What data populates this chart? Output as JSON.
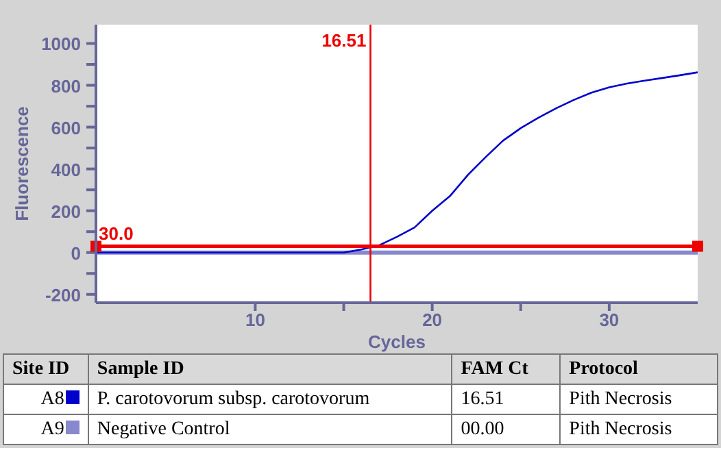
{
  "chart_data": {
    "type": "line",
    "xlabel": "Cycles",
    "ylabel": "Fluorescence",
    "xlim": [
      1,
      35
    ],
    "ylim": [
      -240,
      1090
    ],
    "xticks": [
      10,
      {
        "value": 15,
        "label": null
      },
      20,
      {
        "value": 25,
        "label": null
      },
      30
    ],
    "yticks": [
      -200,
      {
        "value": -100,
        "label": null
      },
      0,
      {
        "value": 100,
        "label": null
      },
      200,
      {
        "value": 300,
        "label": null
      },
      400,
      {
        "value": 500,
        "label": null
      },
      600,
      {
        "value": 700,
        "label": null
      },
      800,
      {
        "value": 900,
        "label": null
      },
      1000
    ],
    "grid": false,
    "legend": "bottom",
    "marker": "none",
    "line_style": "solid",
    "series": [
      {
        "name": "A8",
        "color": "#0000cc",
        "x": [
          1,
          5,
          10,
          14,
          15,
          16,
          17,
          18,
          19,
          20,
          21,
          22,
          23,
          24,
          25,
          26,
          27,
          28,
          29,
          30,
          31,
          32,
          33,
          34,
          35
        ],
        "values": [
          0,
          0,
          0,
          0,
          0,
          15,
          35,
          75,
          120,
          200,
          270,
          370,
          455,
          535,
          595,
          645,
          690,
          730,
          765,
          790,
          808,
          822,
          835,
          848,
          862
        ]
      },
      {
        "name": "A9",
        "color": "#8888cc",
        "x": [
          1,
          35
        ],
        "values": [
          0,
          0
        ]
      }
    ],
    "ref_lines": [
      {
        "axis": "y",
        "value": 30,
        "label": "30.0",
        "color": "#ee0000"
      },
      {
        "axis": "x",
        "value": 16.51,
        "label": "16.51",
        "color": "#ee0000"
      }
    ],
    "annotations": [
      "Site ID",
      "Sample ID",
      "FAM Ct",
      "Protocol",
      "P. carotovorum subsp. carotovorum",
      "16.51",
      "Pith Necrosis",
      "Negative Control",
      "00.00",
      "Pith Necrosis"
    ]
  }
}
